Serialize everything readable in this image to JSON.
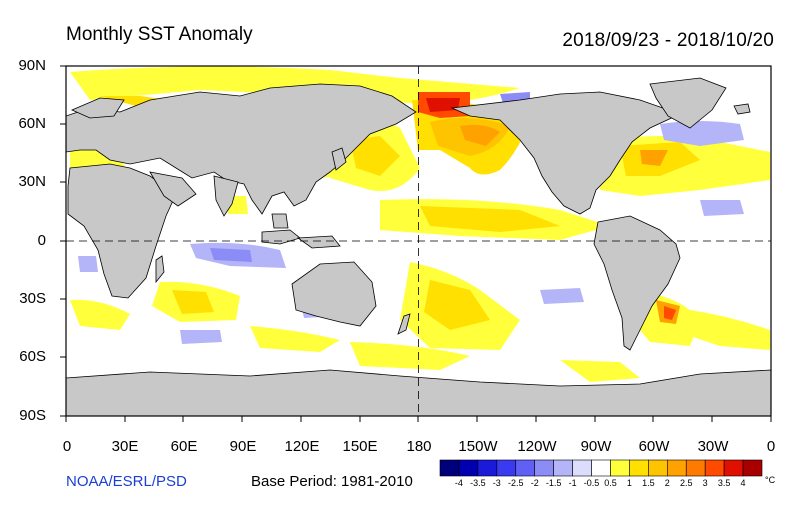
{
  "header": {
    "title": "Monthly SST Anomaly",
    "date_range": "2018/09/23 - 2018/10/20"
  },
  "footer": {
    "credit": "NOAA/ESRL/PSD",
    "base_period": "Base Period: 1981-2010"
  },
  "map": {
    "lat_labels": [
      "90N",
      "60N",
      "30N",
      "0",
      "30S",
      "60S",
      "90S"
    ],
    "lon_labels": [
      "0",
      "30E",
      "60E",
      "90E",
      "120E",
      "150E",
      "180",
      "150W",
      "120W",
      "90W",
      "60W",
      "30W",
      "0"
    ],
    "land_color": "#c8c8c8",
    "ocean_color": "#ffffff"
  },
  "colorbar": {
    "tick_labels": [
      "-4",
      "-3.5",
      "-3",
      "-2.5",
      "-2",
      "-1.5",
      "-1",
      "-0.5",
      "0.5",
      "1",
      "1.5",
      "2",
      "2.5",
      "3",
      "3.5",
      "4"
    ],
    "unit": "°C",
    "colors": [
      "#00007a",
      "#0000b0",
      "#1a1ad8",
      "#3a3af0",
      "#6060f4",
      "#8c8cf6",
      "#b4b4f8",
      "#dcdcfc",
      "#ffffff",
      "#ffff3c",
      "#ffe000",
      "#ffc400",
      "#ffa200",
      "#ff7a00",
      "#ff4a00",
      "#e01000",
      "#a80000"
    ]
  }
}
